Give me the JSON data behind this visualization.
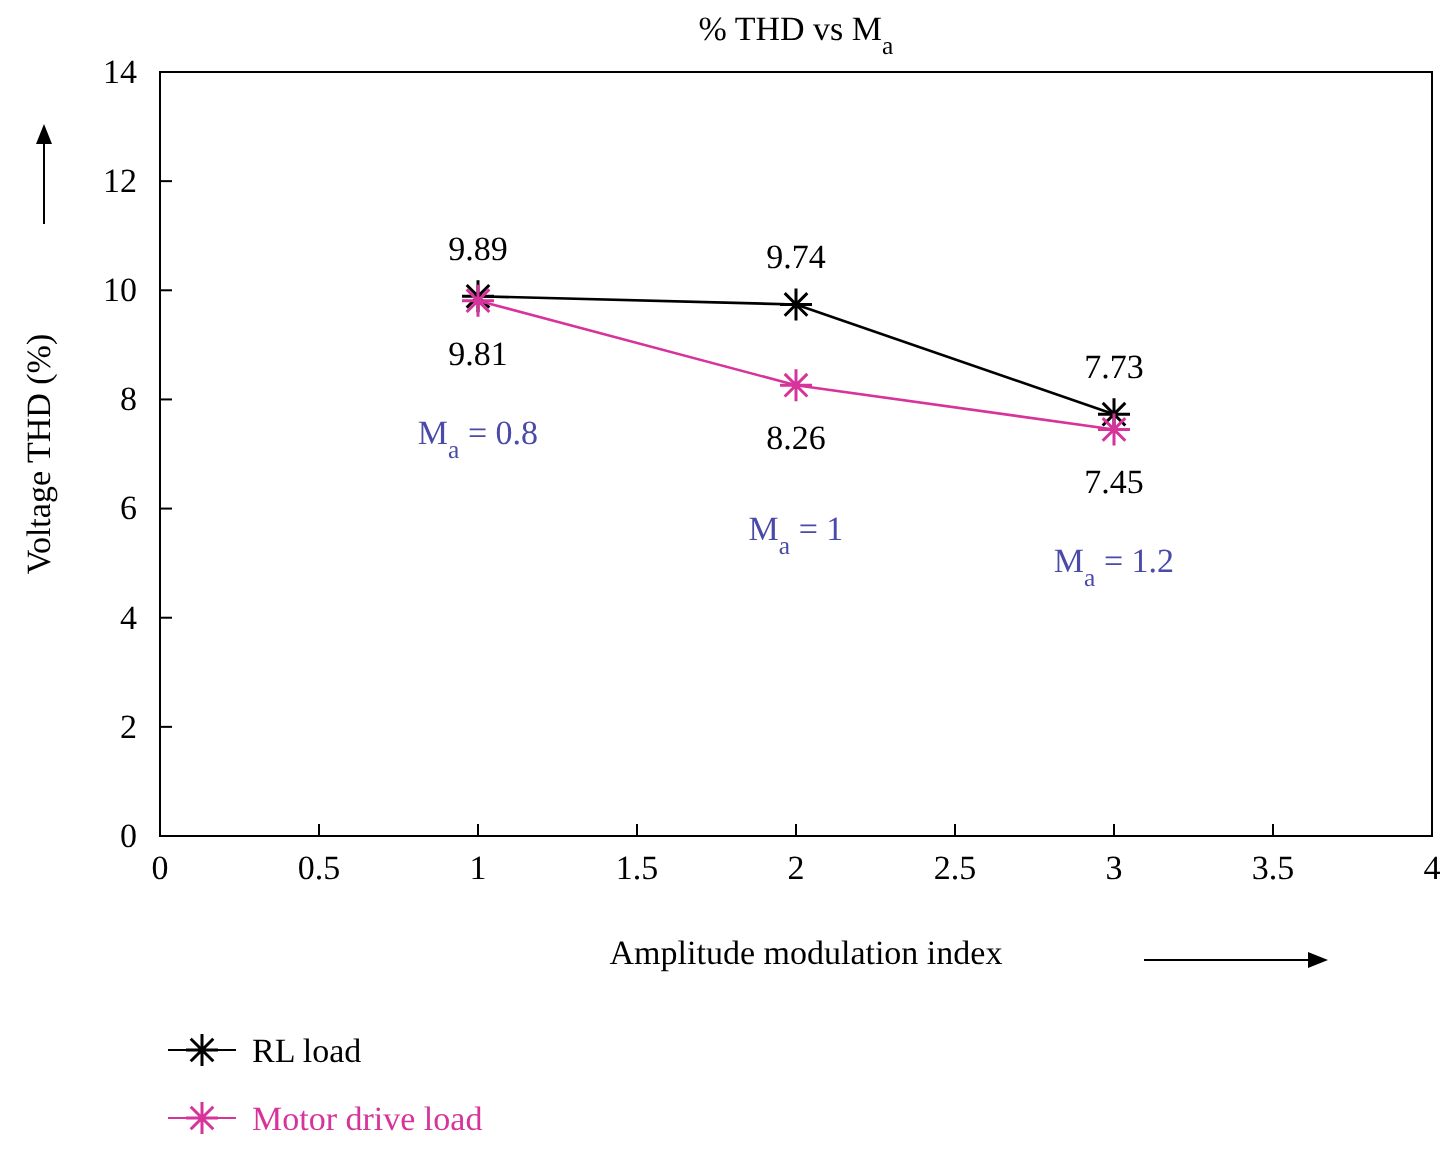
{
  "chart_data": {
    "type": "line",
    "title": "% THD vs M$_{a}$",
    "xlabel": "Amplitude modulation index",
    "ylabel": "Voltage THD (%)",
    "x": [
      1,
      2,
      3
    ],
    "series": [
      {
        "name": "RL load",
        "color": "#000000",
        "values": [
          9.89,
          9.74,
          7.73
        ]
      },
      {
        "name": "Motor drive load",
        "color": "#d6339b",
        "values": [
          9.81,
          8.26,
          7.45
        ]
      }
    ],
    "xlim": [
      0,
      4
    ],
    "xticks": [
      0,
      0.5,
      1,
      1.5,
      2,
      2.5,
      3,
      3.5,
      4
    ],
    "ylim": [
      0,
      14
    ],
    "yticks": [
      0,
      2,
      4,
      6,
      8,
      10,
      12,
      14
    ],
    "annotations": [
      "M$_{a}$ = 0.8",
      "M$_{a}$ = 1",
      "M$_{a}$ = 1.2"
    ],
    "data_labels": true,
    "grid": false,
    "legend": "bottom left",
    "marker": "cross",
    "line_style": "solid"
  }
}
